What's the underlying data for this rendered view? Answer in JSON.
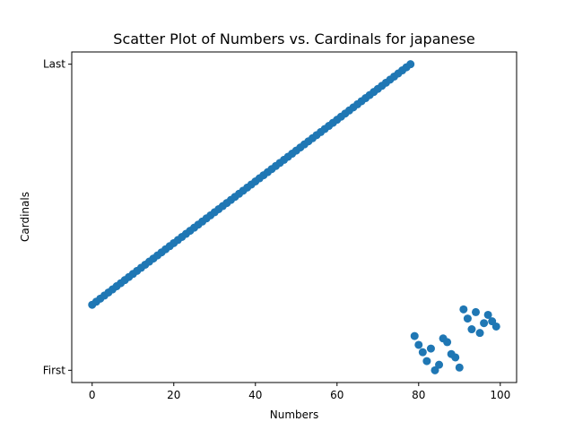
{
  "chart_data": {
    "type": "scatter",
    "title": "Scatter Plot of Numbers vs. Cardinals for japanese",
    "xlabel": "Numbers",
    "ylabel": "Cardinals",
    "xlim": [
      -5,
      104
    ],
    "ylim": [
      -0.04,
      1.04
    ],
    "xticks": [
      0,
      20,
      40,
      60,
      80,
      100
    ],
    "xtick_labels": [
      "0",
      "20",
      "40",
      "60",
      "80",
      "100"
    ],
    "yticks": [
      0,
      1
    ],
    "ytick_labels": [
      "First",
      "Last"
    ],
    "grid": false,
    "marker_color": "#1f77b4",
    "linear_range": {
      "x_start": 0,
      "x_end": 78,
      "y_start": 0.214,
      "y_end": 1.0
    },
    "scatter_points": [
      [
        79,
        0.112
      ],
      [
        80,
        0.083
      ],
      [
        81,
        0.059
      ],
      [
        82,
        0.03
      ],
      [
        83,
        0.071
      ],
      [
        84,
        0.0
      ],
      [
        85,
        0.018
      ],
      [
        86,
        0.104
      ],
      [
        87,
        0.092
      ],
      [
        88,
        0.053
      ],
      [
        89,
        0.042
      ],
      [
        90,
        0.009
      ],
      [
        91,
        0.199
      ],
      [
        92,
        0.169
      ],
      [
        93,
        0.134
      ],
      [
        94,
        0.19
      ],
      [
        95,
        0.122
      ],
      [
        96,
        0.154
      ],
      [
        97,
        0.181
      ],
      [
        98,
        0.16
      ],
      [
        99,
        0.143
      ]
    ]
  }
}
